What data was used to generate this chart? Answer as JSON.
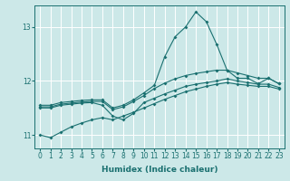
{
  "xlabel": "Humidex (Indice chaleur)",
  "bg_color": "#cce8e8",
  "grid_color": "#ffffff",
  "line_color": "#1a7070",
  "xlim": [
    -0.5,
    23.5
  ],
  "ylim": [
    10.75,
    13.4
  ],
  "yticks": [
    11,
    12,
    13
  ],
  "xticks": [
    0,
    1,
    2,
    3,
    4,
    5,
    6,
    7,
    8,
    9,
    10,
    11,
    12,
    13,
    14,
    15,
    16,
    17,
    18,
    19,
    20,
    21,
    22,
    23
  ],
  "series": [
    {
      "x": [
        0,
        1,
        2,
        3,
        4,
        5,
        6,
        7,
        8,
        9,
        10,
        11,
        12,
        13,
        14,
        15,
        16,
        17,
        18,
        19,
        20,
        21,
        22,
        23
      ],
      "y": [
        11.55,
        11.55,
        11.6,
        11.62,
        11.64,
        11.65,
        11.65,
        11.5,
        11.55,
        11.65,
        11.78,
        11.92,
        12.45,
        12.82,
        13.0,
        13.28,
        13.1,
        12.68,
        12.2,
        12.05,
        12.05,
        11.95,
        12.05,
        11.95
      ]
    },
    {
      "x": [
        0,
        1,
        2,
        3,
        4,
        5,
        6,
        7,
        8,
        9,
        10,
        11,
        12,
        13,
        14,
        15,
        16,
        17,
        18,
        19,
        20,
        21,
        22,
        23
      ],
      "y": [
        11.52,
        11.52,
        11.57,
        11.59,
        11.61,
        11.62,
        11.62,
        11.47,
        11.52,
        11.62,
        11.73,
        11.86,
        11.96,
        12.04,
        12.1,
        12.14,
        12.17,
        12.2,
        12.2,
        12.15,
        12.1,
        12.05,
        12.05,
        11.95
      ]
    },
    {
      "x": [
        0,
        1,
        2,
        3,
        4,
        5,
        6,
        7,
        8,
        9,
        10,
        11,
        12,
        13,
        14,
        15,
        16,
        17,
        18,
        19,
        20,
        21,
        22,
        23
      ],
      "y": [
        11.5,
        11.5,
        11.55,
        11.57,
        11.59,
        11.6,
        11.55,
        11.35,
        11.28,
        11.4,
        11.6,
        11.68,
        11.76,
        11.83,
        11.9,
        11.94,
        11.97,
        12.0,
        12.04,
        12.0,
        11.97,
        11.94,
        11.94,
        11.88
      ]
    },
    {
      "x": [
        0,
        1,
        2,
        3,
        4,
        5,
        6,
        7,
        8,
        9,
        10,
        11,
        12,
        13,
        14,
        15,
        16,
        17,
        18,
        19,
        20,
        21,
        22,
        23
      ],
      "y": [
        11.0,
        10.95,
        11.05,
        11.15,
        11.22,
        11.28,
        11.32,
        11.28,
        11.35,
        11.42,
        11.5,
        11.58,
        11.66,
        11.73,
        11.8,
        11.85,
        11.9,
        11.94,
        11.97,
        11.94,
        11.92,
        11.9,
        11.9,
        11.85
      ]
    }
  ]
}
